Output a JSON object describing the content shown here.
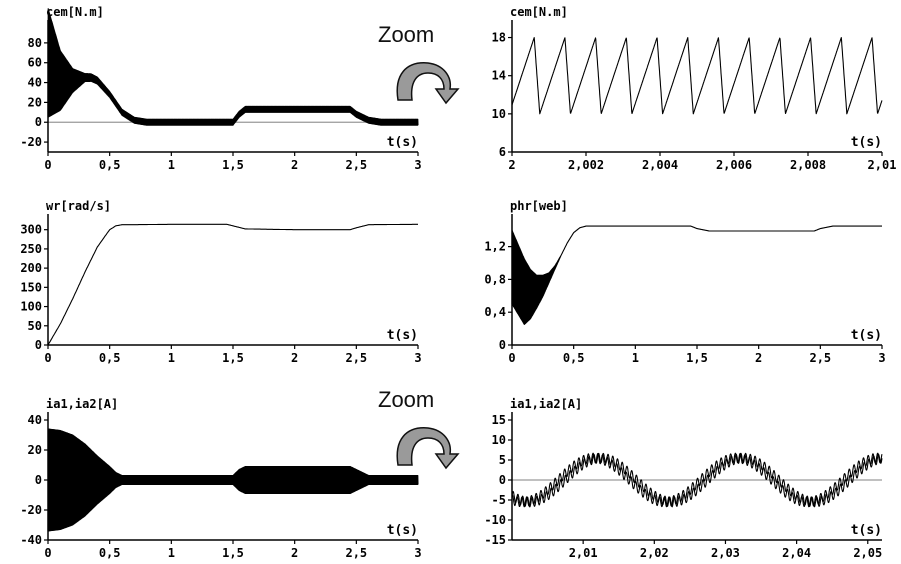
{
  "annotations": {
    "zoom_top": "Zoom",
    "zoom_bottom": "Zoom"
  },
  "arrow_icon": "curved-zoom-arrow-icon",
  "chart_data": [
    {
      "type": "line",
      "ylabel": "cem[N.m]",
      "xlabel": "t(s)",
      "xlim": [
        0,
        3
      ],
      "ylim": [
        -30,
        95
      ],
      "xticks": [
        0,
        0.5,
        1,
        1.5,
        2,
        2.5,
        3
      ],
      "xticklabels": [
        "0",
        "0,5",
        "1",
        "1,5",
        "2",
        "2,5",
        "3"
      ],
      "yticks": [
        -20,
        0,
        20,
        40,
        60,
        80
      ],
      "yticklabels": [
        "-20",
        "0",
        "20",
        "40",
        "60",
        "80"
      ],
      "zero_line": true,
      "series": [
        {
          "x": [
            0,
            0.1,
            0.2,
            0.3,
            0.35,
            0.4,
            0.5,
            0.6,
            0.7,
            0.8,
            1.0,
            1.5,
            1.55,
            1.6,
            2.0,
            2.45,
            2.5,
            2.6,
            2.7,
            3.0
          ],
          "values": [
            60,
            42,
            42,
            45,
            45,
            42,
            28,
            10,
            2,
            0,
            0,
            0,
            8,
            13,
            13,
            13,
            8,
            2,
            0,
            0
          ],
          "oscillation": [
            [
              0,
              55
            ],
            [
              0.1,
              30
            ],
            [
              0.2,
              12
            ],
            [
              0.3,
              4
            ],
            [
              0.5,
              3
            ],
            [
              1.5,
              3
            ],
            [
              3,
              3
            ]
          ]
        }
      ]
    },
    {
      "type": "line",
      "ylabel": "cem[N.m]",
      "xlabel": "t(s)",
      "xlim": [
        2,
        2.01
      ],
      "ylim": [
        6,
        19
      ],
      "xticks": [
        2,
        2.002,
        2.004,
        2.006,
        2.008,
        2.01
      ],
      "xticklabels": [
        "2",
        "2,002",
        "2,004",
        "2,006",
        "2,008",
        "2,01"
      ],
      "yticks": [
        6,
        10,
        14,
        18
      ],
      "yticklabels": [
        "6",
        "10",
        "14",
        "18"
      ],
      "zero_line": false,
      "series": [
        {
          "sawtooth": {
            "period": 0.00083,
            "min": 10,
            "max": 18,
            "phase": 8e-05,
            "end": 13
          }
        }
      ]
    },
    {
      "type": "line",
      "ylabel": "wr[rad/s]",
      "xlabel": "t(s)",
      "xlim": [
        0,
        3
      ],
      "ylim": [
        0,
        320
      ],
      "xticks": [
        0,
        0.5,
        1,
        1.5,
        2,
        2.5,
        3
      ],
      "xticklabels": [
        "0",
        "0,5",
        "1",
        "1,5",
        "2",
        "2,5",
        "3"
      ],
      "yticks": [
        0,
        50,
        100,
        150,
        200,
        250,
        300
      ],
      "yticklabels": [
        "0",
        "50",
        "100",
        "150",
        "200",
        "250",
        "300"
      ],
      "zero_line": false,
      "series": [
        {
          "x": [
            0,
            0.1,
            0.2,
            0.3,
            0.4,
            0.5,
            0.55,
            0.6,
            0.7,
            1.0,
            1.45,
            1.5,
            1.6,
            2.0,
            2.45,
            2.5,
            2.6,
            3.0
          ],
          "values": [
            0,
            55,
            120,
            190,
            255,
            300,
            310,
            313,
            313,
            314,
            314,
            310,
            302,
            300,
            300,
            305,
            313,
            314
          ]
        }
      ]
    },
    {
      "type": "line",
      "ylabel": "phr[web]",
      "xlabel": "t(s)",
      "xlim": [
        0,
        3
      ],
      "ylim": [
        0,
        1.5
      ],
      "xticks": [
        0,
        0.5,
        1,
        1.5,
        2,
        2.5,
        3
      ],
      "xticklabels": [
        "0",
        "0,5",
        "1",
        "1,5",
        "2",
        "2,5",
        "3"
      ],
      "yticks": [
        0,
        0.4,
        0.8,
        1.2
      ],
      "yticklabels": [
        "0",
        "0,4",
        "0,8",
        "1,2"
      ],
      "zero_line": false,
      "series": [
        {
          "x": [
            0,
            0.05,
            0.1,
            0.15,
            0.2,
            0.25,
            0.3,
            0.35,
            0.4,
            0.45,
            0.5,
            0.55,
            0.6,
            0.7,
            1.0,
            1.45,
            1.5,
            1.6,
            2.0,
            2.45,
            2.5,
            2.6,
            3.0
          ],
          "values": [
            0.95,
            0.8,
            0.65,
            0.62,
            0.65,
            0.72,
            0.82,
            0.95,
            1.1,
            1.25,
            1.37,
            1.43,
            1.45,
            1.45,
            1.45,
            1.45,
            1.42,
            1.39,
            1.39,
            1.39,
            1.42,
            1.45,
            1.45
          ],
          "oscillation": [
            [
              0,
              0.45
            ],
            [
              0.1,
              0.4
            ],
            [
              0.2,
              0.2
            ],
            [
              0.3,
              0.06
            ],
            [
              0.35,
              0.02
            ],
            [
              0.4,
              0
            ],
            [
              3,
              0
            ]
          ]
        }
      ]
    },
    {
      "type": "line",
      "ylabel": "ia1,ia2[A]",
      "xlabel": "t(s)",
      "xlim": [
        0,
        3
      ],
      "ylim": [
        -40,
        40
      ],
      "xticks": [
        0,
        0.5,
        1,
        1.5,
        2,
        2.5,
        3
      ],
      "xticklabels": [
        "0",
        "0,5",
        "1",
        "1,5",
        "2",
        "2,5",
        "3"
      ],
      "yticks": [
        -40,
        -20,
        0,
        20,
        40
      ],
      "yticklabels": [
        "-40",
        "-20",
        "0",
        "20",
        "40"
      ],
      "zero_line": true,
      "series": [
        {
          "x": [
            0,
            3
          ],
          "values": [
            0,
            0
          ],
          "oscillation": [
            [
              0,
              34
            ],
            [
              0.1,
              33
            ],
            [
              0.2,
              30
            ],
            [
              0.3,
              24
            ],
            [
              0.4,
              16
            ],
            [
              0.5,
              9
            ],
            [
              0.55,
              5
            ],
            [
              0.6,
              3
            ],
            [
              1.5,
              3
            ],
            [
              1.55,
              7
            ],
            [
              1.6,
              9
            ],
            [
              2.0,
              9
            ],
            [
              2.45,
              9
            ],
            [
              2.5,
              7
            ],
            [
              2.6,
              3
            ],
            [
              3,
              3
            ]
          ]
        }
      ]
    },
    {
      "type": "line",
      "ylabel": "ia1,ia2[A]",
      "xlabel": "t(s)",
      "xlim": [
        2,
        2.052
      ],
      "ylim": [
        -15,
        15
      ],
      "xticks": [
        2.01,
        2.02,
        2.03,
        2.04,
        2.05
      ],
      "xticklabels": [
        "2,01",
        "2,02",
        "2,03",
        "2,04",
        "2,05"
      ],
      "yticks": [
        -15,
        -10,
        -5,
        0,
        5,
        10,
        15
      ],
      "yticklabels": [
        "-15",
        "-10",
        "-5",
        "0",
        "5",
        "10",
        "15"
      ],
      "zero_line": true,
      "series": [
        {
          "sine": {
            "amplitude": 5.5,
            "period": 0.02,
            "phase": -0.0075,
            "ripple": 1.2,
            "ripple_freq": 1500
          }
        },
        {
          "sine": {
            "amplitude": 5.5,
            "period": 0.02,
            "phase": -0.0065,
            "ripple": 1.2,
            "ripple_freq": 1500
          }
        }
      ]
    }
  ]
}
